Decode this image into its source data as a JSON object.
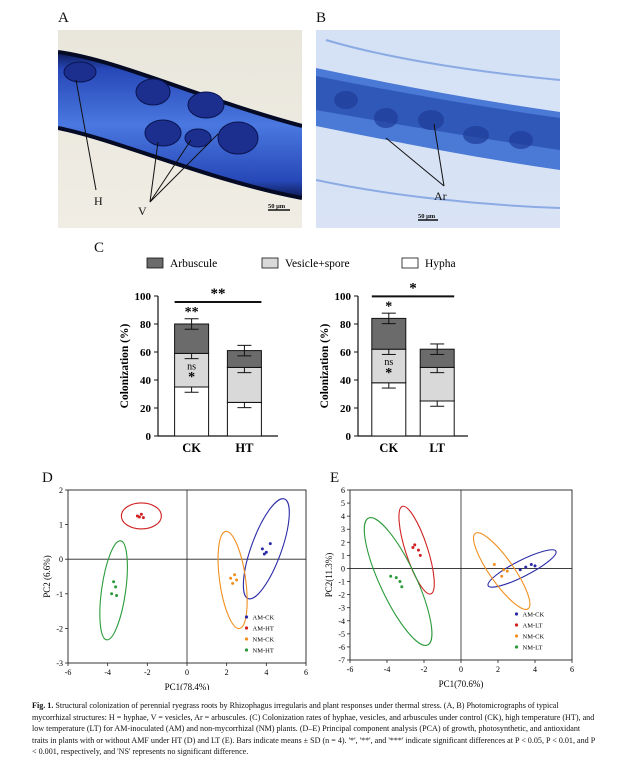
{
  "panels": {
    "a": "A",
    "b": "B",
    "c": "C",
    "d": "D",
    "e": "E"
  },
  "micrographs": {
    "a_labels": {
      "h": "H",
      "v": "V",
      "scale": "50 μm"
    },
    "b_labels": {
      "ar": "Ar",
      "scale": "50 μm"
    }
  },
  "colors": {
    "arbuscule": "#6b6b6b",
    "vesicle": "#d9d9d9",
    "hypha": "#ffffff",
    "am_ck": "#2b2ba8",
    "am_stress": "#d02020",
    "nm_ck": "#f09020",
    "nm_stress": "#2a9a3a",
    "root_blue": "#3a62c8"
  },
  "chart_data": [
    {
      "type": "bar",
      "stacked": true,
      "ylabel": "Colonization (%)",
      "ylim": [
        0,
        100
      ],
      "yticks": [
        0,
        20,
        40,
        60,
        80,
        100
      ],
      "categories": [
        "CK",
        "HT"
      ],
      "series": [
        {
          "name": "Hypha",
          "values": [
            35,
            24
          ]
        },
        {
          "name": "Vesicle+spore",
          "values": [
            24,
            25
          ]
        },
        {
          "name": "Arbuscule",
          "values": [
            21,
            12
          ]
        }
      ],
      "legend": [
        "Arbuscule",
        "Vesicle+spore",
        "Hypha"
      ],
      "significance": {
        "bracket": "**",
        "arbuscule": "**",
        "vesicle": "ns",
        "hypha": "*"
      }
    },
    {
      "type": "bar",
      "stacked": true,
      "ylabel": "Colonization (%)",
      "ylim": [
        0,
        100
      ],
      "yticks": [
        0,
        20,
        40,
        60,
        80,
        100
      ],
      "categories": [
        "CK",
        "LT"
      ],
      "series": [
        {
          "name": "Hypha",
          "values": [
            38,
            25
          ]
        },
        {
          "name": "Vesicle+spore",
          "values": [
            24,
            24
          ]
        },
        {
          "name": "Arbuscule",
          "values": [
            22,
            13
          ]
        }
      ],
      "significance": {
        "bracket": "*",
        "arbuscule": "*",
        "vesicle": "ns",
        "hypha": "*"
      }
    },
    {
      "type": "scatter",
      "xlabel": "PC1(78.4%)",
      "ylabel": "PC2 (6.6%)",
      "xlim": [
        -6,
        6
      ],
      "ylim": [
        -3,
        2
      ],
      "xticks": [
        -6,
        -4,
        -2,
        0,
        2,
        4,
        6
      ],
      "yticks": [
        -3,
        -2,
        -1,
        0,
        1,
        2
      ],
      "legend": [
        "AM-CK",
        "AM-HT",
        "NM-CK",
        "NM-HT"
      ],
      "groups": [
        {
          "name": "AM-CK",
          "points": [
            [
              3.8,
              0.3
            ],
            [
              4.0,
              0.2
            ],
            [
              3.9,
              0.15
            ],
            [
              4.2,
              0.45
            ]
          ]
        },
        {
          "name": "AM-HT",
          "points": [
            [
              -2.5,
              1.25
            ],
            [
              -2.3,
              1.3
            ],
            [
              -2.2,
              1.2
            ],
            [
              -2.4,
              1.22
            ]
          ]
        },
        {
          "name": "NM-CK",
          "points": [
            [
              2.2,
              -0.55
            ],
            [
              2.4,
              -0.45
            ],
            [
              2.3,
              -0.7
            ],
            [
              2.5,
              -0.6
            ]
          ]
        },
        {
          "name": "NM-HT",
          "points": [
            [
              -3.7,
              -0.65
            ],
            [
              -3.6,
              -0.8
            ],
            [
              -3.8,
              -1.0
            ],
            [
              -3.55,
              -1.05
            ]
          ]
        }
      ]
    },
    {
      "type": "scatter",
      "xlabel": "PC1(70.6%)",
      "ylabel": "PC2(11.3%)",
      "xlim": [
        -6,
        6
      ],
      "ylim": [
        -7,
        6
      ],
      "xticks": [
        -6,
        -4,
        -2,
        0,
        2,
        4,
        6
      ],
      "yticks": [
        -7,
        -6,
        -5,
        -4,
        -3,
        -2,
        -1,
        0,
        1,
        2,
        3,
        4,
        5,
        6
      ],
      "legend": [
        "AM-CK",
        "AM-LT",
        "NM-CK",
        "NM-LT"
      ],
      "groups": [
        {
          "name": "AM-CK",
          "points": [
            [
              3.5,
              0.1
            ],
            [
              4.0,
              0.2
            ],
            [
              3.8,
              0.3
            ],
            [
              3.2,
              -0.1
            ]
          ]
        },
        {
          "name": "AM-LT",
          "points": [
            [
              -2.5,
              1.8
            ],
            [
              -2.3,
              1.4
            ],
            [
              -2.2,
              1.0
            ],
            [
              -2.6,
              1.6
            ]
          ]
        },
        {
          "name": "NM-CK",
          "points": [
            [
              1.8,
              0.3
            ],
            [
              2.5,
              -0.2
            ],
            [
              2.2,
              -0.6
            ],
            [
              2.3,
              -0.1
            ]
          ]
        },
        {
          "name": "NM-LT",
          "points": [
            [
              -3.5,
              -0.7
            ],
            [
              -3.3,
              -1.0
            ],
            [
              -3.8,
              -0.6
            ],
            [
              -3.2,
              -1.4
            ]
          ]
        }
      ]
    }
  ],
  "caption": {
    "label": "Fig. 1.",
    "text": "Structural colonization of perennial ryegrass roots by Rhizophagus irregularis and plant responses under thermal stress. (A, B) Photomicrographs of typical mycorrhizal structures: H = hyphae, V = vesicles, Ar = arbuscules. (C) Colonization rates of hyphae, vesicles, and arbuscules under control (CK), high temperature (HT), and low temperature (LT) for AM-inoculated (AM) and non-mycorrhizal (NM) plants. (D–E) Principal component analysis (PCA) of growth, photosynthetic, and antioxidant traits in plants with or without AMF under HT (D) and LT (E). Bars indicate means ± SD (n = 4). '*', '**', and '***' indicate significant differences at P < 0.05, P < 0.01, and P < 0.001, respectively, and 'NS' represents no significant difference."
  }
}
